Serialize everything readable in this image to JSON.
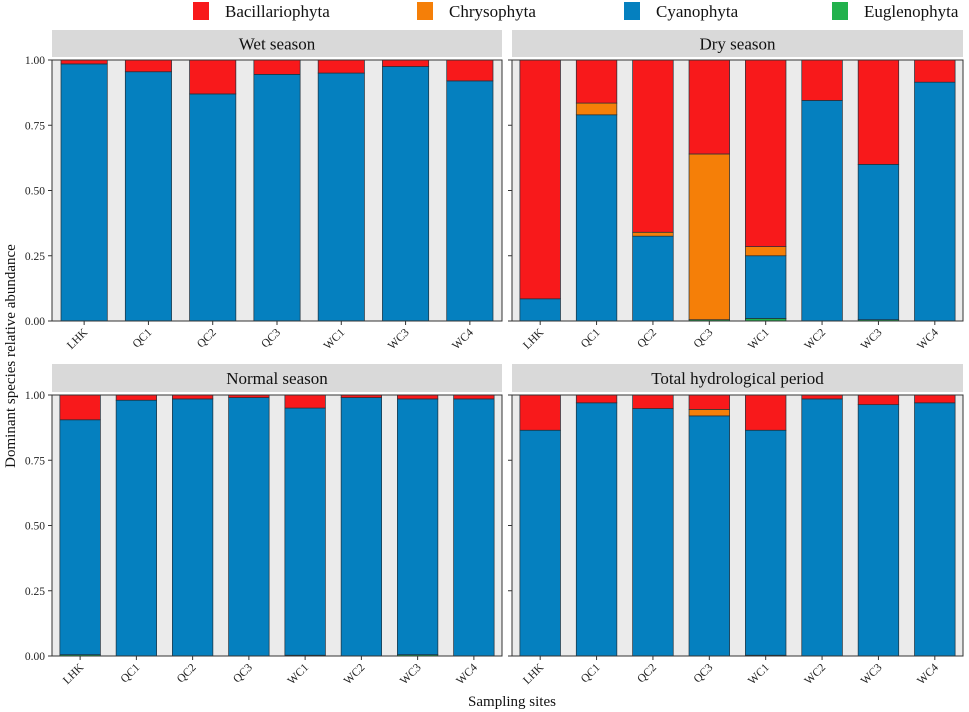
{
  "chart_data": {
    "type": "bar",
    "stacked": true,
    "ylabel": "Dominant species relative abundance",
    "xlabel": "Sampling sites",
    "ylim": [
      0,
      1
    ],
    "yticks": [
      "0.00",
      "0.25",
      "0.50",
      "0.75",
      "1.00"
    ],
    "ytick_values": [
      0,
      0.25,
      0.5,
      0.75,
      1
    ],
    "categories": [
      "LHK",
      "QC1",
      "QC2",
      "QC3",
      "WC1",
      "WC2",
      "WC3",
      "WC4"
    ],
    "legend": {
      "position": "top",
      "entries": [
        {
          "name": "Bacillariophyta",
          "color": "#f8191b"
        },
        {
          "name": "Chrysophyta",
          "color": "#f57f08"
        },
        {
          "name": "Cyanophyta",
          "color": "#0580bf"
        },
        {
          "name": "Euglenophyta",
          "color": "#22b14c"
        }
      ]
    },
    "panels": [
      {
        "title": "Wet season",
        "categories": [
          "LHK",
          "QC1",
          "QC2",
          "QC3",
          "WC1",
          "WC3",
          "WC4"
        ],
        "series": [
          {
            "name": "Euglenophyta",
            "values": [
              0,
              0,
              0,
              0,
              0,
              0,
              0
            ]
          },
          {
            "name": "Cyanophyta",
            "values": [
              0.985,
              0.955,
              0.87,
              0.945,
              0.95,
              0.975,
              0.92
            ]
          },
          {
            "name": "Chrysophyta",
            "values": [
              0,
              0,
              0,
              0,
              0,
              0,
              0
            ]
          },
          {
            "name": "Bacillariophyta",
            "values": [
              0.015,
              0.045,
              0.13,
              0.055,
              0.05,
              0.025,
              0.08
            ]
          }
        ]
      },
      {
        "title": "Dry season",
        "categories": [
          "LHK",
          "QC1",
          "QC2",
          "QC3",
          "WC1",
          "WC2",
          "WC3",
          "WC4"
        ],
        "series": [
          {
            "name": "Euglenophyta",
            "values": [
              0,
              0,
              0,
              0.005,
              0.01,
              0,
              0.005,
              0
            ]
          },
          {
            "name": "Cyanophyta",
            "values": [
              0.085,
              0.79,
              0.325,
              0,
              0.24,
              0.845,
              0.595,
              0.915
            ]
          },
          {
            "name": "Chrysophyta",
            "values": [
              0,
              0.045,
              0.015,
              0.635,
              0.035,
              0,
              0,
              0
            ]
          },
          {
            "name": "Bacillariophyta",
            "values": [
              0.915,
              0.165,
              0.66,
              0.36,
              0.715,
              0.155,
              0.4,
              0.085
            ]
          }
        ]
      },
      {
        "title": "Normal season",
        "categories": [
          "LHK",
          "QC1",
          "QC2",
          "QC3",
          "WC1",
          "WC2",
          "WC3",
          "WC4"
        ],
        "series": [
          {
            "name": "Euglenophyta",
            "values": [
              0.005,
              0,
              0,
              0,
              0.003,
              0,
              0.005,
              0
            ]
          },
          {
            "name": "Cyanophyta",
            "values": [
              0.9,
              0.98,
              0.985,
              0.99,
              0.947,
              0.99,
              0.98,
              0.985
            ]
          },
          {
            "name": "Chrysophyta",
            "values": [
              0,
              0,
              0,
              0,
              0,
              0,
              0,
              0
            ]
          },
          {
            "name": "Bacillariophyta",
            "values": [
              0.095,
              0.02,
              0.015,
              0.01,
              0.05,
              0.01,
              0.015,
              0.015
            ]
          }
        ]
      },
      {
        "title": "Total hydrological period",
        "categories": [
          "LHK",
          "QC1",
          "QC2",
          "QC3",
          "WC1",
          "WC2",
          "WC3",
          "WC4"
        ],
        "series": [
          {
            "name": "Euglenophyta",
            "values": [
              0,
              0,
              0,
              0,
              0.003,
              0,
              0,
              0
            ]
          },
          {
            "name": "Cyanophyta",
            "values": [
              0.865,
              0.97,
              0.948,
              0.92,
              0.862,
              0.985,
              0.963,
              0.97
            ]
          },
          {
            "name": "Chrysophyta",
            "values": [
              0,
              0,
              0,
              0.025,
              0,
              0,
              0,
              0
            ]
          },
          {
            "name": "Bacillariophyta",
            "values": [
              0.135,
              0.03,
              0.052,
              0.055,
              0.135,
              0.015,
              0.037,
              0.03
            ]
          }
        ]
      }
    ]
  }
}
